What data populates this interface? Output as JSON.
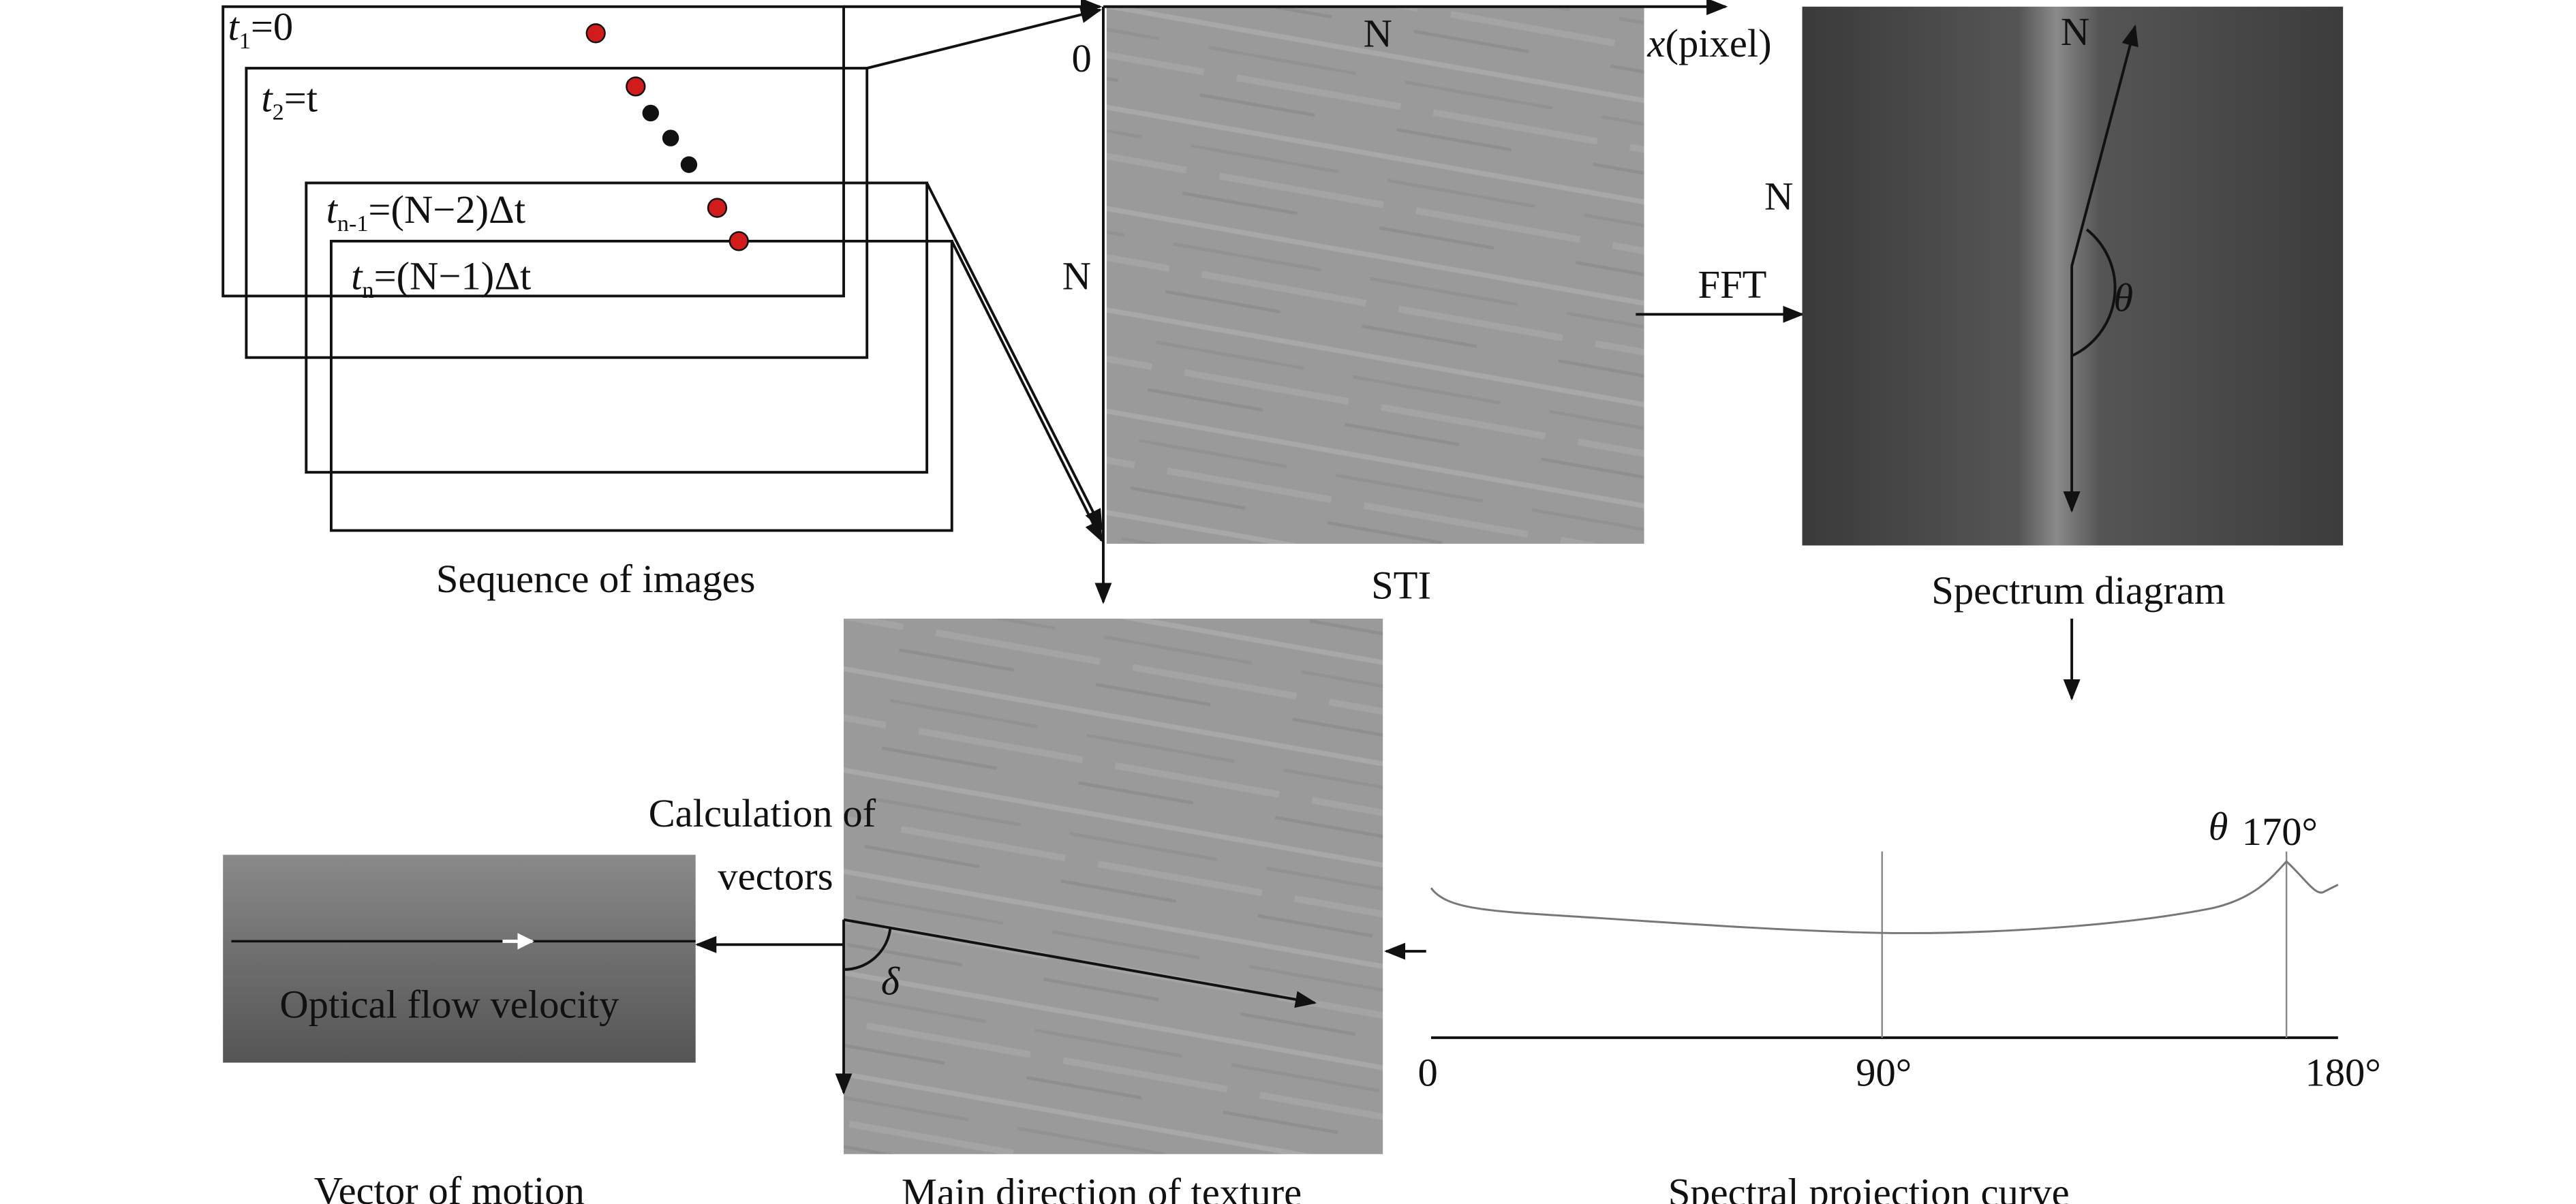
{
  "frames": [
    {
      "var": "t",
      "sub": "1",
      "rest": "=0"
    },
    {
      "var": "t",
      "sub": "2",
      "rest": "=t"
    },
    {
      "var": "t",
      "sub": "n-1",
      "rest": "=(N−2)Δt"
    },
    {
      "var": "t",
      "sub": "n",
      "rest": "=(N−1)Δt"
    }
  ],
  "sequence_caption": "Sequence of images",
  "sti": {
    "caption": "STI",
    "top_label": "N",
    "origin": "0",
    "left_label": "N",
    "x_axis": {
      "var": "x",
      "unit": "(pixel)"
    }
  },
  "fft_label": "FFT",
  "spectrum": {
    "caption": "Spectrum diagram",
    "top_label": "N",
    "left_label": "N",
    "angle": "θ"
  },
  "projection": {
    "caption": "Spectral projection curve",
    "x0": "0",
    "x90": "90°",
    "x180": "180°",
    "peak_symbol": "θ",
    "peak_value": "170°"
  },
  "texture": {
    "caption": "Main direction of texture",
    "angle": "δ"
  },
  "calculation": [
    "Calculation of",
    "vectors"
  ],
  "motion": {
    "caption": "Vector of motion",
    "inner_label": "Optical flow velocity"
  }
}
